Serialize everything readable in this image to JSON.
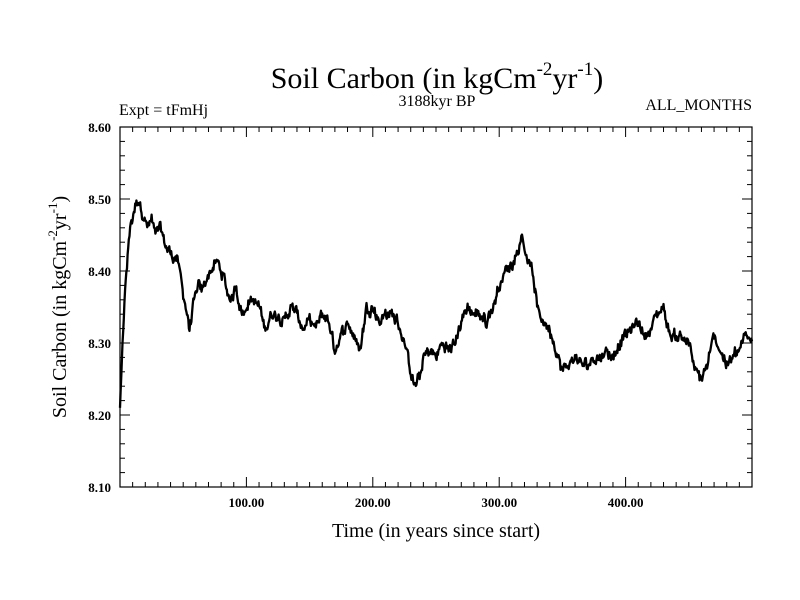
{
  "chart_data": {
    "type": "line",
    "title": {
      "main": "Soil Carbon (in kgCm",
      "sup1": "-2",
      "mid": "yr",
      "sup2": "-1",
      "end": ")"
    },
    "subtitle_left": "Expt = tFmHj",
    "subtitle_center": "3188kyr BP",
    "subtitle_right": "ALL_MONTHS",
    "xlabel": "Time (in years since start)",
    "ylabel": {
      "main": "Soil Carbon (in kgCm",
      "sup1": "-2",
      "mid": "yr",
      "sup2": "-1",
      "end": ")"
    },
    "xlim": [
      0,
      500
    ],
    "ylim": [
      8.1,
      8.6
    ],
    "x_ticks": [
      100,
      200,
      300,
      400
    ],
    "x_tick_labels": [
      "100.00",
      "200.00",
      "300.00",
      "400.00"
    ],
    "y_ticks": [
      8.1,
      8.2,
      8.3,
      8.4,
      8.5,
      8.6
    ],
    "y_tick_labels": [
      "8.10",
      "8.20",
      "8.30",
      "8.40",
      "8.50",
      "8.60"
    ],
    "grid": false,
    "series": [
      {
        "name": "Soil Carbon",
        "x": [
          0,
          2,
          5,
          8,
          12,
          15,
          18,
          22,
          25,
          28,
          32,
          35,
          38,
          42,
          45,
          48,
          52,
          55,
          58,
          62,
          65,
          68,
          72,
          75,
          78,
          82,
          85,
          88,
          92,
          95,
          98,
          102,
          105,
          110,
          115,
          120,
          125,
          130,
          135,
          140,
          145,
          150,
          155,
          160,
          165,
          170,
          175,
          180,
          185,
          190,
          195,
          200,
          205,
          210,
          215,
          220,
          225,
          230,
          233,
          237,
          240,
          245,
          250,
          255,
          260,
          265,
          270,
          275,
          280,
          285,
          290,
          295,
          300,
          305,
          310,
          315,
          318,
          322,
          326,
          330,
          335,
          340,
          345,
          350,
          355,
          360,
          365,
          370,
          375,
          380,
          385,
          390,
          395,
          400,
          405,
          410,
          415,
          420,
          425,
          430,
          435,
          440,
          445,
          450,
          455,
          460,
          465,
          470,
          475,
          480,
          485,
          490,
          495,
          500
        ],
        "y": [
          8.21,
          8.3,
          8.4,
          8.46,
          8.49,
          8.5,
          8.48,
          8.46,
          8.47,
          8.45,
          8.46,
          8.44,
          8.43,
          8.42,
          8.42,
          8.39,
          8.35,
          8.32,
          8.35,
          8.38,
          8.37,
          8.39,
          8.4,
          8.41,
          8.41,
          8.39,
          8.37,
          8.36,
          8.38,
          8.35,
          8.34,
          8.36,
          8.36,
          8.35,
          8.32,
          8.34,
          8.34,
          8.33,
          8.35,
          8.34,
          8.32,
          8.33,
          8.32,
          8.34,
          8.33,
          8.29,
          8.31,
          8.33,
          8.31,
          8.29,
          8.35,
          8.35,
          8.33,
          8.34,
          8.34,
          8.33,
          8.3,
          8.26,
          8.24,
          8.25,
          8.28,
          8.29,
          8.28,
          8.3,
          8.29,
          8.3,
          8.33,
          8.35,
          8.34,
          8.34,
          8.33,
          8.35,
          8.38,
          8.4,
          8.41,
          8.43,
          8.45,
          8.42,
          8.4,
          8.35,
          8.33,
          8.32,
          8.29,
          8.26,
          8.27,
          8.28,
          8.27,
          8.27,
          8.28,
          8.28,
          8.29,
          8.28,
          8.3,
          8.31,
          8.32,
          8.33,
          8.31,
          8.32,
          8.34,
          8.35,
          8.31,
          8.31,
          8.31,
          8.3,
          8.26,
          8.25,
          8.27,
          8.31,
          8.29,
          8.27,
          8.28,
          8.29,
          8.31,
          8.3
        ]
      }
    ]
  }
}
